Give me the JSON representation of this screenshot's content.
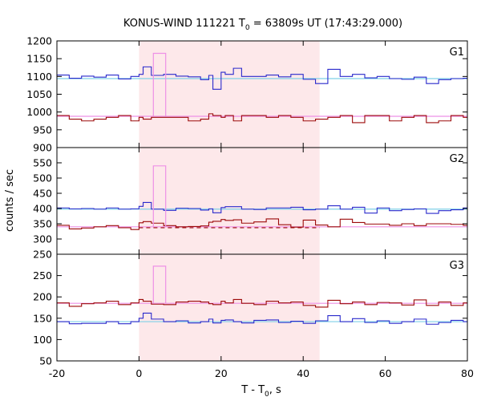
{
  "chart_data": {
    "type": "line",
    "title_parts": {
      "pre": "KONUS-WIND 111221 T",
      "sub": "0",
      "post": " = 63809s UT (17:43:29.000)"
    },
    "xlabel_parts": {
      "pre": "T - T",
      "sub": "0",
      "post": ", s"
    },
    "ylabel": "counts / sec",
    "xlim": [
      -20,
      80
    ],
    "x_ticks": [
      "-20",
      "0",
      "20",
      "40",
      "60",
      "80"
    ],
    "x_tick_values": [
      -20,
      0,
      20,
      40,
      60,
      80
    ],
    "shaded_interval": [
      0,
      44
    ],
    "colors": {
      "shade": "#fde8ea",
      "blue": "#2a2acc",
      "red": "#9c0a0a",
      "cyan": "#7fd0e8",
      "pink": "#ee90e6",
      "violet": "#c060b0"
    },
    "panels": [
      {
        "label": "G1",
        "ylim": [
          900,
          1200
        ],
        "y_ticks": [
          900,
          950,
          1000,
          1050,
          1100,
          1150,
          1200
        ],
        "y_tick_labels": [
          "900",
          "950",
          "1000",
          "1050",
          "1100",
          "1150",
          "1200"
        ],
        "background_levels": {
          "blue": 1094,
          "red": 988
        },
        "series": [
          {
            "name": "blue",
            "edges": [
              -20,
              -17,
              -14,
              -11,
              -8,
              -5,
              -2,
              0,
              1,
              3,
              6,
              9,
              12,
              15,
              17,
              18,
              20,
              21,
              23,
              25,
              28,
              31,
              34,
              37,
              40,
              43,
              46,
              49,
              52,
              55,
              58,
              61,
              64,
              67,
              70,
              73,
              76,
              79,
              80
            ],
            "values": [
              1104,
              1095,
              1101,
              1098,
              1104,
              1093,
              1100,
              1106,
              1127,
              1103,
              1106,
              1101,
              1099,
              1091,
              1103,
              1064,
              1112,
              1106,
              1123,
              1100,
              1100,
              1104,
              1099,
              1106,
              1092,
              1080,
              1120,
              1100,
              1106,
              1096,
              1100,
              1094,
              1092,
              1098,
              1080,
              1091,
              1094,
              1095
            ]
          },
          {
            "name": "red",
            "edges": [
              -20,
              -17,
              -14,
              -11,
              -8,
              -5,
              -2,
              0,
              1,
              3,
              6,
              9,
              12,
              15,
              17,
              18,
              20,
              21,
              23,
              25,
              28,
              31,
              34,
              37,
              40,
              43,
              46,
              49,
              52,
              55,
              58,
              61,
              64,
              67,
              70,
              73,
              76,
              79,
              80
            ],
            "values": [
              990,
              980,
              975,
              980,
              985,
              990,
              975,
              985,
              980,
              985,
              985,
              985,
              975,
              980,
              995,
              990,
              985,
              990,
              975,
              990,
              990,
              985,
              990,
              985,
              975,
              980,
              985,
              990,
              970,
              990,
              990,
              975,
              985,
              990,
              970,
              975,
              990,
              985
            ]
          },
          {
            "name": "pink",
            "edges": [
              3.5,
              6.5
            ],
            "values": [
              1165
            ]
          }
        ]
      },
      {
        "label": "G2",
        "ylim": [
          250,
          600
        ],
        "y_ticks": [
          250,
          300,
          350,
          400,
          450,
          500,
          550
        ],
        "y_tick_labels": [
          "250",
          "300",
          "350",
          "400",
          "450",
          "500",
          "550"
        ],
        "background_levels": {
          "blue": 398,
          "red": 340
        },
        "series": [
          {
            "name": "blue",
            "edges": [
              -20,
              -17,
              -14,
              -11,
              -8,
              -5,
              -2,
              0,
              1,
              3,
              6,
              9,
              12,
              15,
              17,
              18,
              20,
              21,
              23,
              25,
              28,
              31,
              34,
              37,
              40,
              43,
              46,
              49,
              52,
              55,
              58,
              61,
              64,
              67,
              70,
              73,
              76,
              79,
              80
            ],
            "values": [
              402,
              399,
              400,
              398,
              402,
              398,
              399,
              407,
              420,
              398,
              394,
              401,
              400,
              395,
              399,
              386,
              403,
              406,
              406,
              398,
              397,
              402,
              402,
              404,
              396,
              398,
              409,
              398,
              404,
              385,
              402,
              393,
              397,
              399,
              384,
              393,
              396,
              402
            ]
          },
          {
            "name": "red",
            "edges": [
              -20,
              -17,
              -14,
              -11,
              -8,
              -5,
              -2,
              0,
              1,
              3,
              6,
              9,
              12,
              15,
              17,
              18,
              20,
              21,
              23,
              25,
              28,
              31,
              34,
              37,
              40,
              43,
              46,
              49,
              52,
              55,
              58,
              61,
              64,
              67,
              70,
              73,
              76,
              79,
              80
            ],
            "values": [
              345,
              333,
              336,
              340,
              344,
              337,
              331,
              353,
              357,
              352,
              344,
              340,
              341,
              343,
              355,
              358,
              364,
              361,
              363,
              352,
              356,
              366,
              347,
              339,
              362,
              346,
              340,
              365,
              354,
              349,
              349,
              345,
              350,
              344,
              350,
              350,
              348,
              345
            ]
          },
          {
            "name": "pink",
            "edges": [
              3.5,
              6.5
            ],
            "values": [
              540
            ]
          }
        ]
      },
      {
        "label": "G3",
        "ylim": [
          50,
          300
        ],
        "y_ticks": [
          50,
          100,
          150,
          200,
          250
        ],
        "y_tick_labels": [
          "50",
          "100",
          "150",
          "200",
          "250"
        ],
        "background_levels": {
          "blue": 142,
          "red": 185
        },
        "series": [
          {
            "name": "blue",
            "edges": [
              -20,
              -17,
              -14,
              -11,
              -8,
              -5,
              -2,
              0,
              1,
              3,
              6,
              9,
              12,
              15,
              17,
              18,
              20,
              21,
              23,
              25,
              28,
              31,
              34,
              37,
              40,
              43,
              46,
              49,
              52,
              55,
              58,
              61,
              64,
              67,
              70,
              73,
              76,
              79,
              80
            ],
            "values": [
              142,
              137,
              138,
              138,
              142,
              137,
              142,
              150,
              162,
              148,
              142,
              144,
              139,
              142,
              148,
              139,
              145,
              146,
              142,
              139,
              145,
              146,
              140,
              143,
              138,
              144,
              156,
              142,
              149,
              140,
              144,
              138,
              142,
              148,
              136,
              140,
              145,
              142
            ]
          },
          {
            "name": "red",
            "edges": [
              -20,
              -17,
              -14,
              -11,
              -8,
              -5,
              -2,
              0,
              1,
              3,
              6,
              9,
              12,
              15,
              17,
              18,
              20,
              21,
              23,
              25,
              28,
              31,
              34,
              37,
              40,
              43,
              46,
              49,
              52,
              55,
              58,
              61,
              64,
              67,
              70,
              73,
              76,
              79,
              80
            ],
            "values": [
              186,
              178,
              184,
              186,
              190,
              182,
              186,
              194,
              190,
              183,
              182,
              188,
              190,
              188,
              184,
              182,
              190,
              186,
              194,
              185,
              182,
              190,
              186,
              188,
              180,
              176,
              192,
              184,
              188,
              182,
              187,
              186,
              181,
              193,
              180,
              188,
              180,
              186
            ]
          },
          {
            "name": "pink",
            "edges": [
              3.5,
              6.5
            ],
            "values": [
              272
            ]
          }
        ]
      }
    ]
  }
}
